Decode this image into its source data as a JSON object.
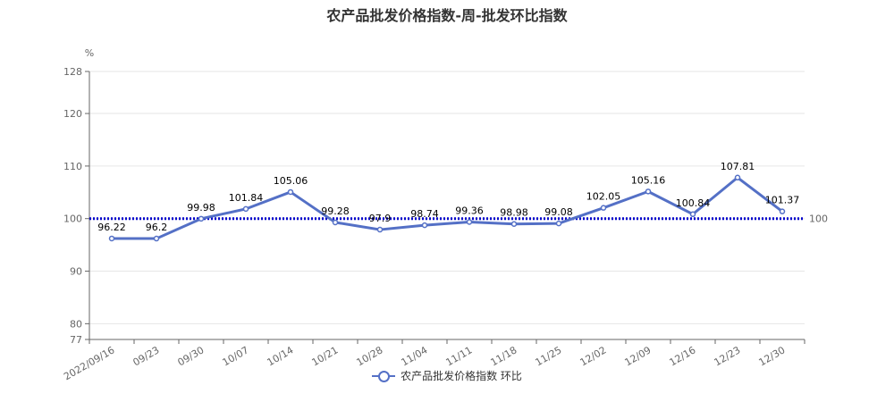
{
  "chart_data": {
    "type": "line",
    "title": "农产品批发价格指数-周-批发环比指数",
    "ylabel": "%",
    "xlabel": "",
    "categories": [
      "2022/09/16",
      "09/23",
      "09/30",
      "10/07",
      "10/14",
      "10/21",
      "10/28",
      "11/04",
      "11/11",
      "11/18",
      "11/25",
      "12/02",
      "12/09",
      "12/16",
      "12/23",
      "12/30"
    ],
    "series": [
      {
        "name": "农产品批发价格指数 环比",
        "values": [
          96.22,
          96.2,
          99.98,
          101.84,
          105.06,
          99.28,
          97.9,
          98.74,
          99.36,
          98.98,
          99.08,
          102.05,
          105.16,
          100.84,
          107.81,
          101.37
        ],
        "color": "#5470c6"
      }
    ],
    "yticks": [
      77,
      80,
      90,
      100,
      110,
      120,
      128
    ],
    "ylim": [
      77,
      128
    ],
    "reference_line": {
      "value": 100,
      "label": "100",
      "color": "#0000cc",
      "style": "dotted"
    },
    "grid": true,
    "legend_position": "bottom-center"
  }
}
